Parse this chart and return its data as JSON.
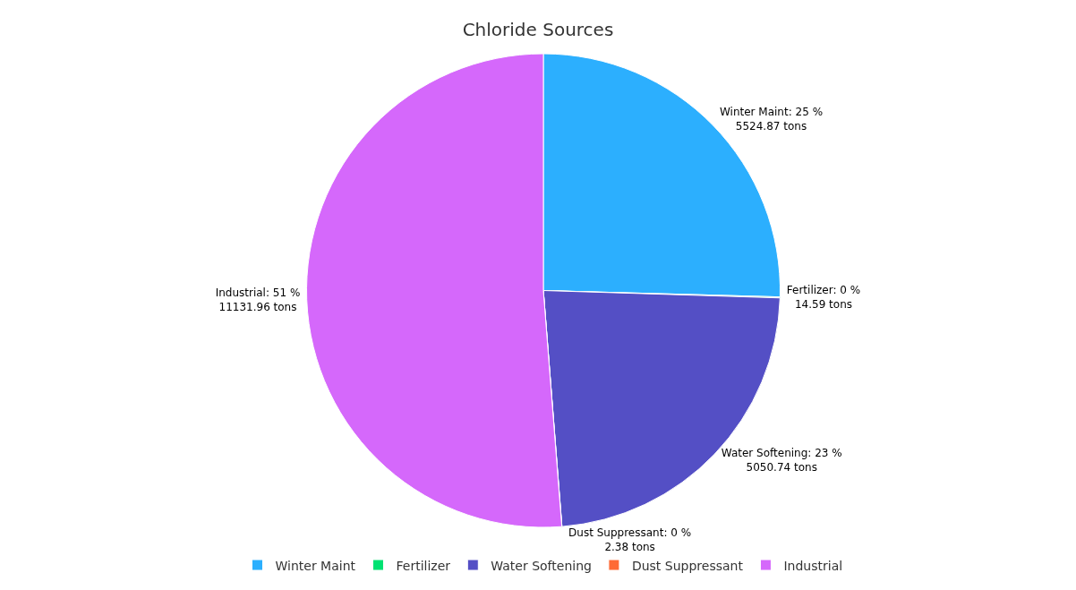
{
  "chart_data": {
    "type": "pie",
    "title": "Chloride Sources",
    "categories": [
      "Winter Maint",
      "Fertilizer",
      "Water Softening",
      "Dust Suppressant",
      "Industrial"
    ],
    "values": [
      5524.87,
      14.59,
      5050.74,
      2.38,
      11131.96
    ],
    "colors": [
      "#2caffe",
      "#00e272",
      "#544fc5",
      "#fe6a35",
      "#d568fb"
    ],
    "value_labels": [
      "Winter Maint: 25 %\n5524.87 tons",
      "Fertilizer: 0 %\n14.59 tons",
      "Water Softening: 23 %\n5050.74 tons",
      "Dust Suppressant: 0 %\n2.38 tons",
      "Industrial: 51 %\n11131.96 tons"
    ],
    "legend": "bottom"
  }
}
